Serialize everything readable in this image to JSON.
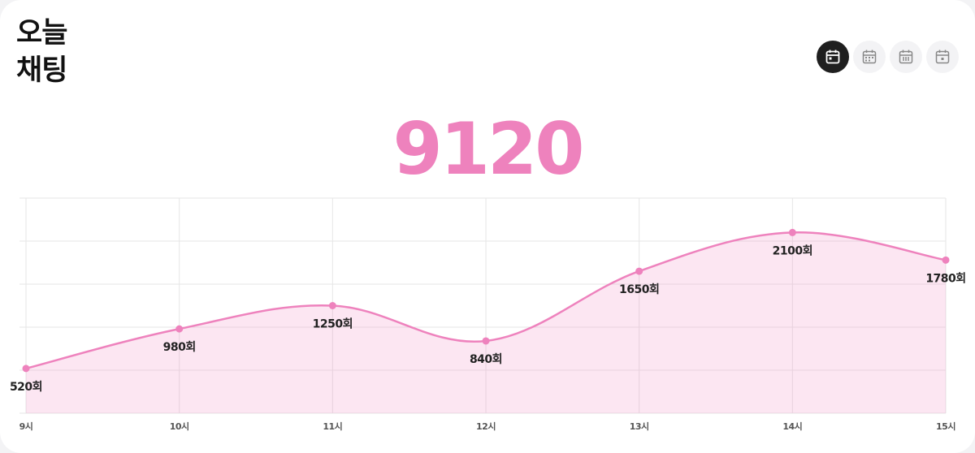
{
  "header": {
    "title": "오늘 채팅",
    "total": "9120"
  },
  "chart_data": {
    "type": "area",
    "categories": [
      "9시",
      "10시",
      "11시",
      "12시",
      "13시",
      "14시",
      "15시"
    ],
    "series": [
      {
        "color": "#ee82bd",
        "values": [
          520,
          980,
          1250,
          840,
          1650,
          2100,
          1780
        ],
        "value_labels": [
          "520회",
          "980회",
          "1250회",
          "840회",
          "1650회",
          "2100회",
          "1780회"
        ]
      }
    ],
    "ylim": [
      0,
      2500
    ],
    "yticks": [
      0,
      500,
      1000,
      1500,
      2000,
      2500
    ],
    "grid": true
  }
}
